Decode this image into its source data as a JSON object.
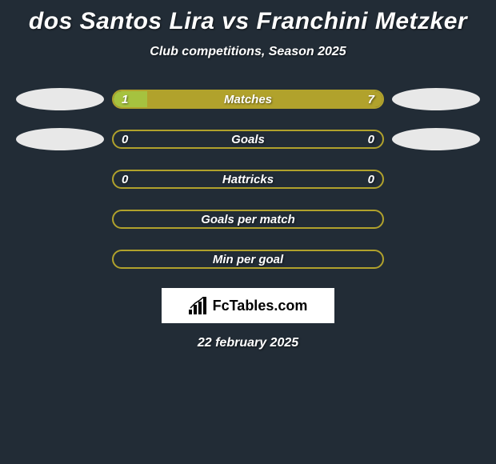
{
  "title": "dos Santos Lira vs Franchini Metzker",
  "subtitle": "Club competitions, Season 2025",
  "date": "22 february 2025",
  "brand": "FcTables.com",
  "colors": {
    "background": "#222c36",
    "accent": "#b1a22c",
    "fill": "#a6c23f",
    "ellipse_left_1": "#e8e8e8",
    "ellipse_left_2": "#e8e8e8",
    "ellipse_right_1": "#e8e8e8",
    "ellipse_right_2": "#e8e8e8",
    "text": "#ffffff"
  },
  "stats": [
    {
      "label": "Matches",
      "left_value": "1",
      "right_value": "7",
      "left_pct": 12.5,
      "right_pct": 87.5,
      "show_left_ellipse": true,
      "show_right_ellipse": true,
      "left_ellipse_color": "#e8e8e8",
      "right_ellipse_color": "#e8e8e8"
    },
    {
      "label": "Goals",
      "left_value": "0",
      "right_value": "0",
      "left_pct": 0,
      "right_pct": 0,
      "show_left_ellipse": true,
      "show_right_ellipse": true,
      "left_ellipse_color": "#e8e8e8",
      "right_ellipse_color": "#e8e8e8"
    },
    {
      "label": "Hattricks",
      "left_value": "0",
      "right_value": "0",
      "left_pct": 0,
      "right_pct": 0,
      "show_left_ellipse": false,
      "show_right_ellipse": false
    },
    {
      "label": "Goals per match",
      "left_value": "",
      "right_value": "",
      "left_pct": 0,
      "right_pct": 0,
      "show_left_ellipse": false,
      "show_right_ellipse": false
    },
    {
      "label": "Min per goal",
      "left_value": "",
      "right_value": "",
      "left_pct": 0,
      "right_pct": 0,
      "show_left_ellipse": false,
      "show_right_ellipse": false
    }
  ]
}
